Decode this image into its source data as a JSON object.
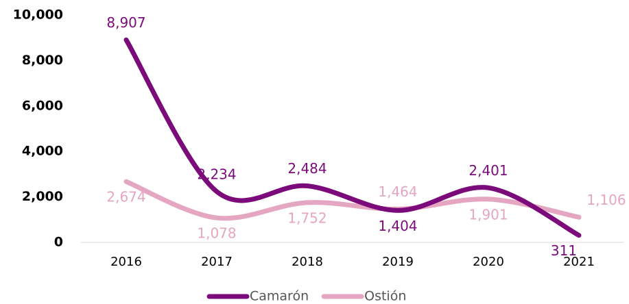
{
  "chart_data": {
    "type": "line",
    "categories": [
      "2016",
      "2017",
      "2018",
      "2019",
      "2020",
      "2021"
    ],
    "series": [
      {
        "name": "Camarón",
        "color": "#7b0a7b",
        "values": [
          8907,
          2234,
          2484,
          1404,
          2401,
          311
        ],
        "value_labels": [
          "8,907",
          "2,234",
          "2,484",
          "1,404",
          "2,401",
          "311"
        ]
      },
      {
        "name": "Ostión",
        "color": "#e4a6c0",
        "values": [
          2674,
          1078,
          1752,
          1464,
          1901,
          1106
        ],
        "value_labels": [
          "2,674",
          "1,078",
          "1,752",
          "1,464",
          "1,901",
          "1,106"
        ]
      }
    ],
    "ylim": [
      0,
      10000
    ],
    "yticks": [
      0,
      {
        "value": 2000,
        "label": "2,000"
      },
      {
        "value": 4000,
        "label": "4,000"
      },
      {
        "value": 6000,
        "label": "6,000"
      },
      {
        "value": 8000,
        "label": "8,000"
      },
      {
        "value": 10000,
        "label": "10,000"
      }
    ],
    "grid": false
  }
}
